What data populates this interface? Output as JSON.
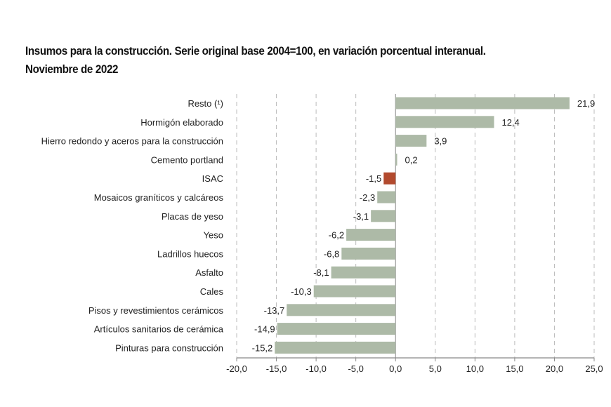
{
  "chart_data": {
    "type": "bar",
    "orientation": "horizontal",
    "title": "Insumos para la construcción. Serie original base 2004=100, en variación porcentual interanual.",
    "subtitle": "Noviembre de 2022",
    "categories": [
      "Resto (¹)",
      "Hormigón elaborado",
      "Hierro redondo y aceros para la construcción",
      "Cemento portland",
      "ISAC",
      "Mosaicos graníticos y calcáreos",
      "Placas de yeso",
      "Yeso",
      "Ladrillos huecos",
      "Asfalto",
      "Cales",
      "Pisos y revestimientos cerámicos",
      "Artículos sanitarios de cerámica",
      "Pinturas para construcción"
    ],
    "values": [
      21.9,
      12.4,
      3.9,
      0.2,
      -1.5,
      -2.3,
      -3.1,
      -6.2,
      -6.8,
      -8.1,
      -10.3,
      -13.7,
      -14.9,
      -15.2
    ],
    "value_labels": [
      "21,9",
      "12,4",
      "3,9",
      "0,2",
      "-1,5",
      "-2,3",
      "-3,1",
      "-6,2",
      "-6,8",
      "-8,1",
      "-10,3",
      "-13,7",
      "-14,9",
      "-15,2"
    ],
    "highlight": "ISAC",
    "xlim": [
      -20,
      25
    ],
    "xticks": [
      -20,
      -15,
      -10,
      -5,
      0,
      5,
      10,
      15,
      20,
      25
    ],
    "xtick_labels": [
      "-20,0",
      "-15,0",
      "-10,0",
      "-5,0",
      "0,0",
      "5,0",
      "10,0",
      "15,0",
      "20,0",
      "25,0"
    ],
    "grid": "vertical dashed",
    "colors": {
      "bar": "#adbaa7",
      "highlight": "#b24a2e",
      "grid": "#bbbbbb",
      "axis": "#888888"
    }
  }
}
